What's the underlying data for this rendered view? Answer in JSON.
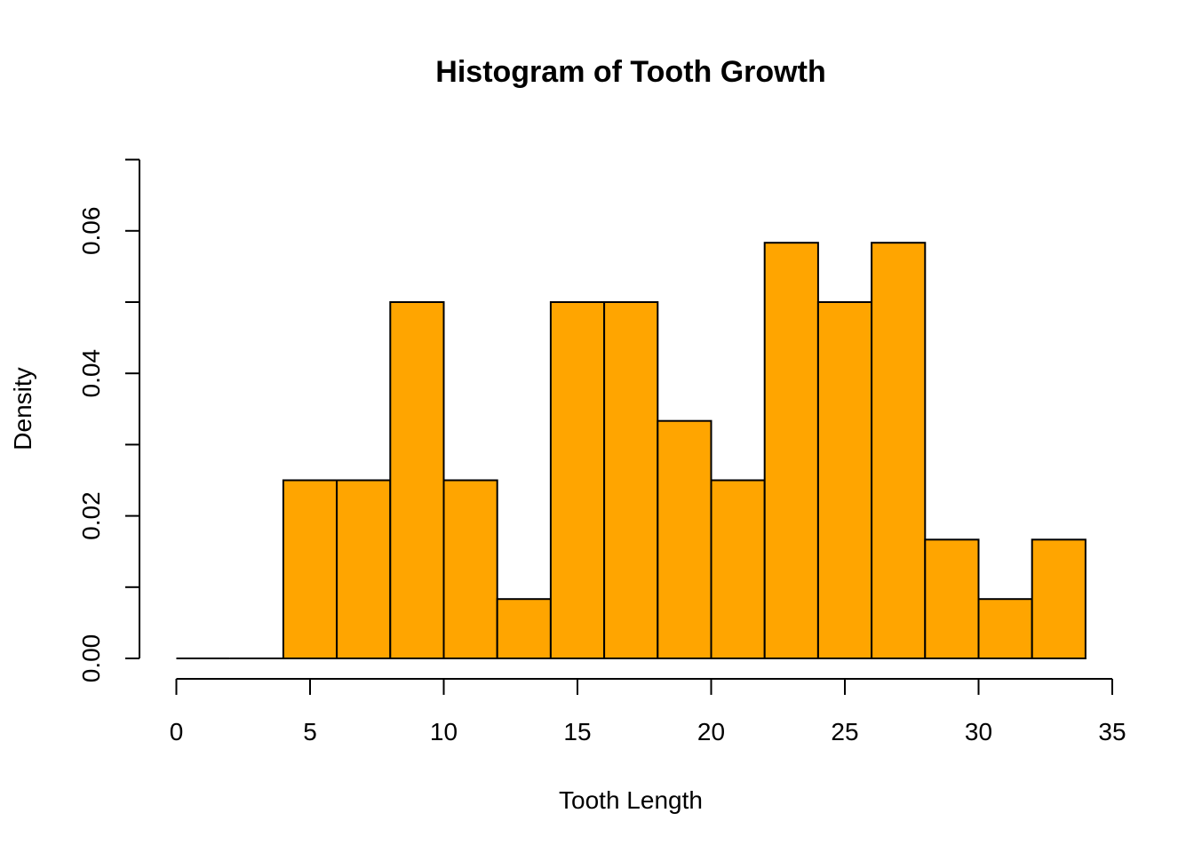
{
  "chart_data": {
    "type": "bar",
    "title": "Histogram of Tooth Growth",
    "xlabel": "Tooth Length",
    "ylabel": "Density",
    "xlim": [
      0,
      35
    ],
    "ylim": [
      0,
      0.07
    ],
    "x_ticks": [
      "0",
      "5",
      "10",
      "15",
      "20",
      "25",
      "30",
      "35"
    ],
    "y_ticks": [
      "0.00",
      "0.02",
      "0.04",
      "0.06"
    ],
    "bins": [
      {
        "x0": 0,
        "x1": 2,
        "value": 0
      },
      {
        "x0": 2,
        "x1": 4,
        "value": 0
      },
      {
        "x0": 4,
        "x1": 6,
        "value": 0.025
      },
      {
        "x0": 6,
        "x1": 8,
        "value": 0.025
      },
      {
        "x0": 8,
        "x1": 10,
        "value": 0.05
      },
      {
        "x0": 10,
        "x1": 12,
        "value": 0.025
      },
      {
        "x0": 12,
        "x1": 14,
        "value": 0.00833
      },
      {
        "x0": 14,
        "x1": 16,
        "value": 0.05
      },
      {
        "x0": 16,
        "x1": 18,
        "value": 0.05
      },
      {
        "x0": 18,
        "x1": 20,
        "value": 0.03333
      },
      {
        "x0": 20,
        "x1": 22,
        "value": 0.025
      },
      {
        "x0": 22,
        "x1": 24,
        "value": 0.05833
      },
      {
        "x0": 24,
        "x1": 26,
        "value": 0.05
      },
      {
        "x0": 26,
        "x1": 28,
        "value": 0.05833
      },
      {
        "x0": 28,
        "x1": 30,
        "value": 0.01667
      },
      {
        "x0": 30,
        "x1": 32,
        "value": 0.00833
      },
      {
        "x0": 32,
        "x1": 34,
        "value": 0.01667
      }
    ],
    "bar_color": "#FFA500",
    "border_color": "#000000",
    "grid": false,
    "legend": "none"
  }
}
